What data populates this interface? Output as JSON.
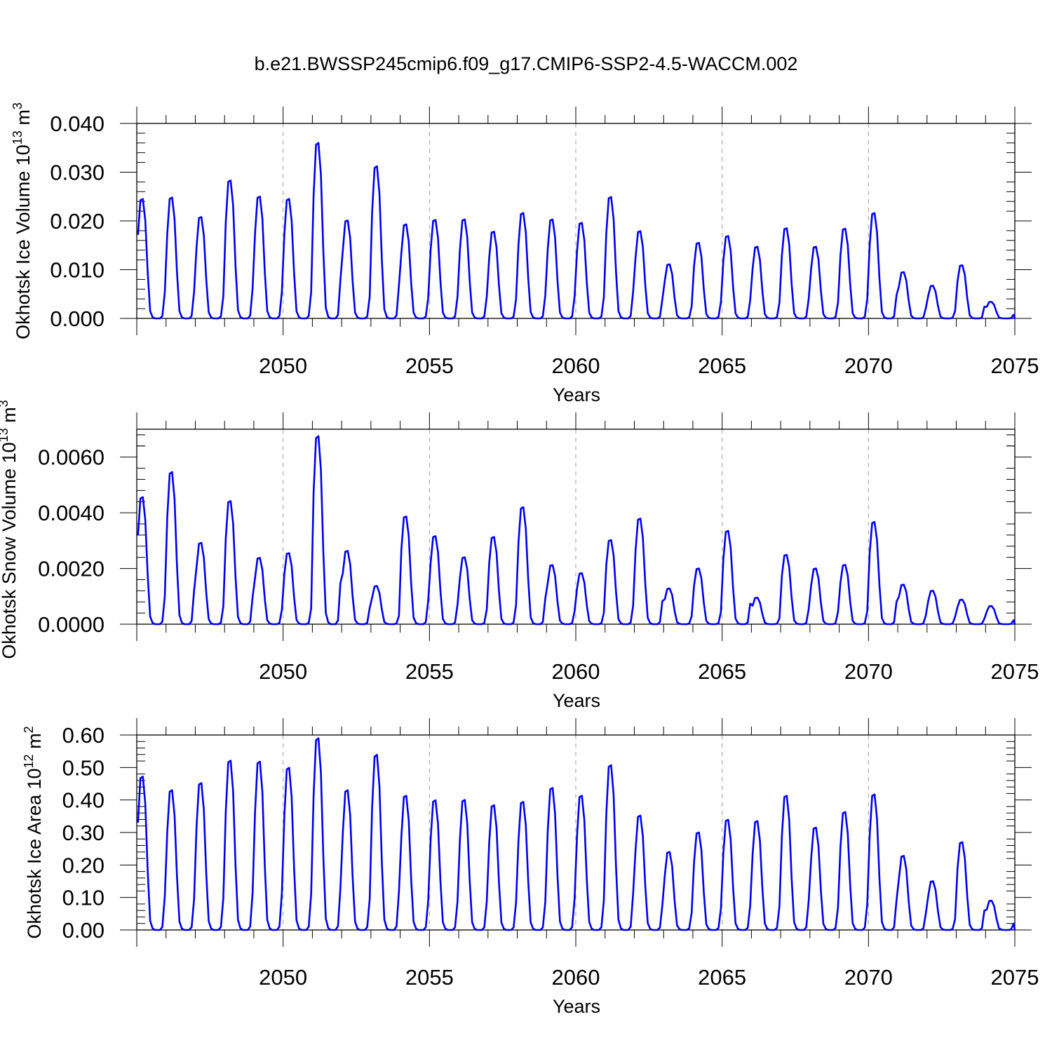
{
  "figure": {
    "title": "b.e21.BWSSP245cmip6.f09_g17.CMIP6-SSP2-4.5-WACCM.002"
  },
  "chart_data": [
    {
      "type": "line",
      "id": "ice-volume",
      "ylabel": {
        "text": "Okhotsk Ice Volume 10",
        "sup": "13",
        "unit": " m",
        "unit_sup": "3"
      },
      "xlabel": "Years",
      "xlim": [
        2045,
        2075
      ],
      "ylim": [
        0,
        0.04
      ],
      "yticks": [
        "0.000",
        "0.010",
        "0.020",
        "0.030",
        "0.040"
      ],
      "xticks": [
        "2050",
        "2055",
        "2060",
        "2065",
        "2070",
        "2075"
      ],
      "series_color": "#0000ee",
      "peaks": [
        0.0245,
        0.0248,
        0.0208,
        0.0283,
        0.025,
        0.0245,
        0.036,
        0.0201,
        0.0312,
        0.0193,
        0.0202,
        0.0203,
        0.0178,
        0.0216,
        0.0203,
        0.0196,
        0.0249,
        0.0179,
        0.0111,
        0.0155,
        0.0169,
        0.0147,
        0.0185,
        0.0147,
        0.0184,
        0.0216,
        0.0095,
        0.0067,
        0.0109,
        0.0034
      ]
    },
    {
      "type": "line",
      "id": "snow-volume",
      "ylabel": {
        "text": "Okhotsk Snow Volume 10",
        "sup": "13",
        "unit": " m",
        "unit_sup": "3"
      },
      "xlabel": "Years",
      "xlim": [
        2045,
        2075
      ],
      "ylim": [
        0,
        0.007
      ],
      "yticks": [
        "0.0000",
        "0.0020",
        "0.0040",
        "0.0060"
      ],
      "xticks": [
        "2050",
        "2055",
        "2060",
        "2065",
        "2070",
        "2075"
      ],
      "series_color": "#0000ee",
      "peaks": [
        0.00456,
        0.00546,
        0.00292,
        0.00442,
        0.00238,
        0.00255,
        0.00675,
        0.00263,
        0.00137,
        0.00387,
        0.00316,
        0.0024,
        0.00313,
        0.0042,
        0.00212,
        0.00183,
        0.00302,
        0.00379,
        0.00128,
        0.002,
        0.00335,
        0.00095,
        0.00249,
        0.002,
        0.00213,
        0.00367,
        0.00142,
        0.0012,
        0.00088,
        0.00065
      ]
    },
    {
      "type": "line",
      "id": "ice-area",
      "ylabel": {
        "text": "Okhotsk Ice Area 10",
        "sup": "12",
        "unit": " m",
        "unit_sup": "2"
      },
      "xlabel": "Years",
      "xlim": [
        2045,
        2075
      ],
      "ylim": [
        0,
        0.6
      ],
      "yticks": [
        "0.00",
        "0.10",
        "0.20",
        "0.30",
        "0.40",
        "0.50",
        "0.60"
      ],
      "xticks": [
        "2050",
        "2055",
        "2060",
        "2065",
        "2070",
        "2075"
      ],
      "series_color": "#0000ee",
      "peaks": [
        0.472,
        0.43,
        0.452,
        0.521,
        0.518,
        0.499,
        0.59,
        0.43,
        0.539,
        0.413,
        0.399,
        0.4,
        0.384,
        0.394,
        0.437,
        0.413,
        0.507,
        0.352,
        0.24,
        0.3,
        0.339,
        0.335,
        0.413,
        0.315,
        0.363,
        0.417,
        0.228,
        0.15,
        0.27,
        0.09
      ]
    }
  ]
}
